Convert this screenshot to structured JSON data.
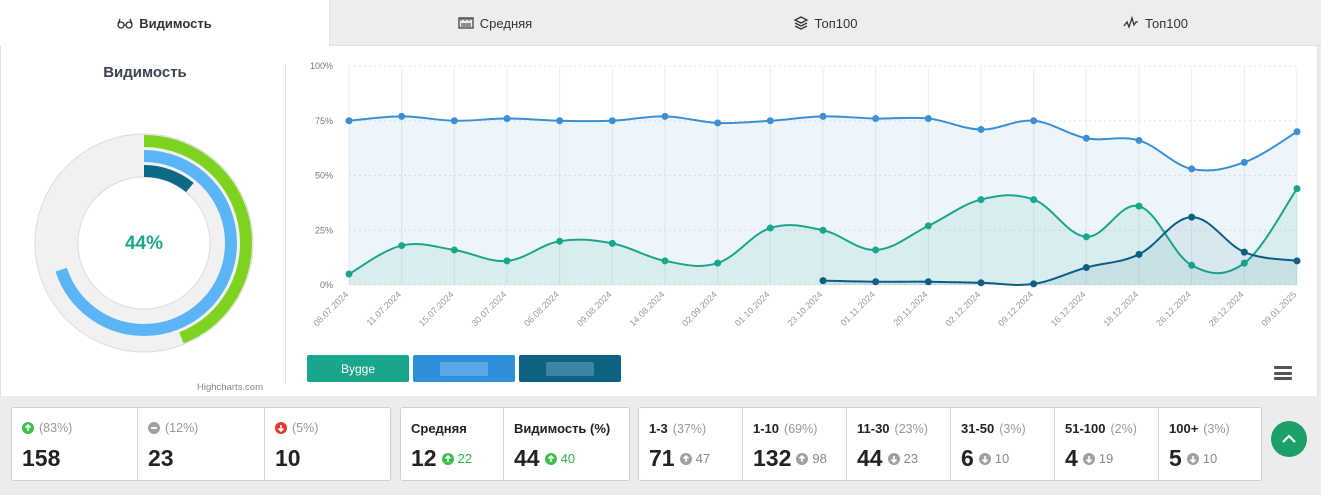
{
  "tabs": [
    {
      "label": "Видимость",
      "icon": "glasses-icon"
    },
    {
      "label": "Средняя",
      "icon": "ruler-icon"
    },
    {
      "label": "Топ100",
      "icon": "layers-icon"
    },
    {
      "label": "Топ100",
      "icon": "pulse-icon"
    }
  ],
  "visibility_panel": {
    "title": "Видимость",
    "center_label": "44%",
    "credit": "Highcharts.com",
    "rings": [
      {
        "name": "outer",
        "value": 44,
        "color": "#7ed321"
      },
      {
        "name": "middle",
        "value": 70,
        "color": "#5ab4f5"
      },
      {
        "name": "inner",
        "value": 11,
        "color": "#0d6a87"
      }
    ]
  },
  "legend": [
    {
      "label": "Bygge",
      "color": "#1aa68a",
      "blurred": false
    },
    {
      "label": "",
      "color": "#2f8fd8",
      "blurred": true
    },
    {
      "label": "",
      "color": "#0c6280",
      "blurred": true
    }
  ],
  "chart_data": {
    "type": "area",
    "categories": [
      "08.07.2024",
      "11.07.2024",
      "15.07.2024",
      "30.07.2024",
      "06.08.2024",
      "09.08.2024",
      "14.08.2024",
      "02.09.2024",
      "01.10.2024",
      "23.10.2024",
      "01.11.2024",
      "20.11.2024",
      "02.12.2024",
      "09.12.2024",
      "16.12.2024",
      "18.12.2024",
      "26.12.2024",
      "28.12.2024",
      "09.01.2025"
    ],
    "y_ticks": [
      "100%",
      "75%",
      "50%",
      "25%",
      "0%"
    ],
    "ylim": [
      0,
      100
    ],
    "grid": true,
    "series": [
      {
        "color": "#3b8fd4",
        "values": [
          75,
          77,
          75,
          76,
          75,
          75,
          77,
          74,
          75,
          77,
          76,
          76,
          71,
          75,
          67,
          66,
          53,
          56,
          70
        ]
      },
      {
        "color": "#1aa68a",
        "values": [
          5,
          18,
          16,
          11,
          20,
          19,
          11,
          10,
          26,
          25,
          16,
          27,
          39,
          39,
          22,
          36,
          9,
          10,
          44
        ]
      },
      {
        "color": "#0c5f80",
        "values": [
          null,
          null,
          null,
          null,
          null,
          null,
          null,
          null,
          null,
          2,
          1.5,
          1.5,
          1,
          0.5,
          8,
          14,
          31,
          15,
          11
        ]
      }
    ]
  },
  "stats": {
    "positions_change": [
      {
        "icon": "arrow-up-icon",
        "color": "green",
        "pct": "(83%)",
        "value": "158"
      },
      {
        "icon": "minus-icon",
        "color": "grey",
        "pct": "(12%)",
        "value": "23"
      },
      {
        "icon": "arrow-down-icon",
        "color": "red",
        "pct": "(5%)",
        "value": "10"
      }
    ],
    "summary": [
      {
        "label": "Средняя",
        "value": "12",
        "delta": "22",
        "delta_dir": "up"
      },
      {
        "label": "Видимость (%)",
        "value": "44",
        "delta": "40",
        "delta_dir": "up"
      }
    ],
    "buckets": [
      {
        "label": "1-3",
        "pct": "(37%)",
        "value": "71",
        "delta": "47",
        "delta_dir": "up"
      },
      {
        "label": "1-10",
        "pct": "(69%)",
        "value": "132",
        "delta": "98",
        "delta_dir": "up"
      },
      {
        "label": "11-30",
        "pct": "(23%)",
        "value": "44",
        "delta": "23",
        "delta_dir": "down"
      },
      {
        "label": "31-50",
        "pct": "(3%)",
        "value": "6",
        "delta": "10",
        "delta_dir": "down"
      },
      {
        "label": "51-100",
        "pct": "(2%)",
        "value": "4",
        "delta": "19",
        "delta_dir": "down"
      },
      {
        "label": "100+",
        "pct": "(3%)",
        "value": "5",
        "delta": "10",
        "delta_dir": "down"
      }
    ]
  }
}
